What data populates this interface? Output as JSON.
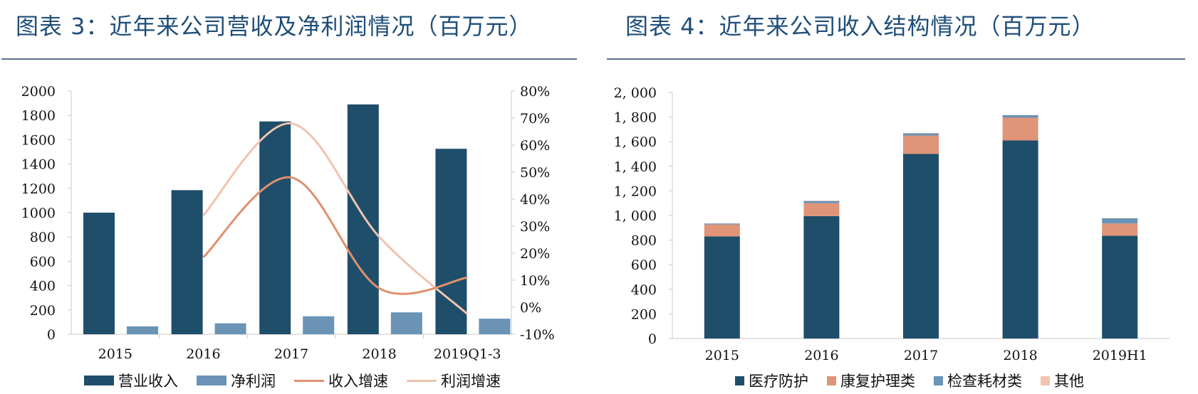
{
  "left": {
    "title": "图表 3：近年来公司营收及净利润情况（百万元）",
    "legend": [
      {
        "label": "营业收入",
        "kind": "box",
        "color": "#1f4e6b"
      },
      {
        "label": "净利润",
        "kind": "box",
        "color": "#6a93b6"
      },
      {
        "label": "收入增速",
        "kind": "line",
        "color": "#e0906e"
      },
      {
        "label": "利润增速",
        "kind": "line",
        "color": "#f0c4b0"
      }
    ]
  },
  "right": {
    "title": "图表 4：近年来公司收入结构情况（百万元）",
    "legend": [
      {
        "label": "医疗防护",
        "color": "#1f4e6b"
      },
      {
        "label": "康复护理类",
        "color": "#e09478"
      },
      {
        "label": "检查耗材类",
        "color": "#6a93b6"
      },
      {
        "label": "其他",
        "color": "#f0c4b0"
      }
    ]
  },
  "chart_data": [
    {
      "type": "bar",
      "categories": [
        "2015",
        "2016",
        "2017",
        "2018",
        "2019Q1-3"
      ],
      "y_ticks": [
        "0",
        "200",
        "400",
        "600",
        "800",
        "1000",
        "1200",
        "1400",
        "1600",
        "1800",
        "2000"
      ],
      "y2_ticks": [
        "-10%",
        "0%",
        "10%",
        "20%",
        "30%",
        "40%",
        "50%",
        "60%",
        "70%",
        "80%"
      ],
      "ylim": [
        0,
        2000
      ],
      "y2lim": [
        -10,
        80
      ],
      "series": [
        {
          "name": "营业收入",
          "kind": "bar",
          "axis": "left",
          "color": "#1f4e6b",
          "values": [
            1000,
            1185,
            1750,
            1890,
            1525
          ]
        },
        {
          "name": "净利润",
          "kind": "bar",
          "axis": "left",
          "color": "#6a93b6",
          "values": [
            65,
            90,
            148,
            180,
            128
          ]
        },
        {
          "name": "收入增速",
          "kind": "line",
          "axis": "right",
          "color": "#e0906e",
          "values": [
            null,
            18.5,
            48,
            7,
            11
          ]
        },
        {
          "name": "利润增速",
          "kind": "line",
          "axis": "right",
          "color": "#f0c4b0",
          "values": [
            null,
            34,
            68,
            26,
            -2.5
          ]
        }
      ],
      "grid": false,
      "legend_position": "bottom"
    },
    {
      "type": "bar",
      "stacked": true,
      "categories": [
        "2015",
        "2016",
        "2017",
        "2018",
        "2019H1"
      ],
      "y_ticks": [
        "0",
        "200",
        "400",
        "600",
        "800",
        "1, 000",
        "1, 200",
        "1, 400",
        "1, 600",
        "1, 800",
        "2, 000"
      ],
      "ylim": [
        0,
        2000
      ],
      "series": [
        {
          "name": "医疗防护",
          "color": "#1f4e6b",
          "values": [
            830,
            995,
            1500,
            1610,
            835
          ]
        },
        {
          "name": "康复护理类",
          "color": "#e09478",
          "values": [
            97,
            105,
            150,
            185,
            100
          ]
        },
        {
          "name": "检查耗材类",
          "color": "#6a93b6",
          "values": [
            8,
            18,
            18,
            20,
            42
          ]
        },
        {
          "name": "其他",
          "color": "#f0c4b0",
          "values": [
            2,
            2,
            2,
            2,
            2
          ]
        }
      ],
      "grid": false,
      "legend_position": "bottom"
    }
  ]
}
